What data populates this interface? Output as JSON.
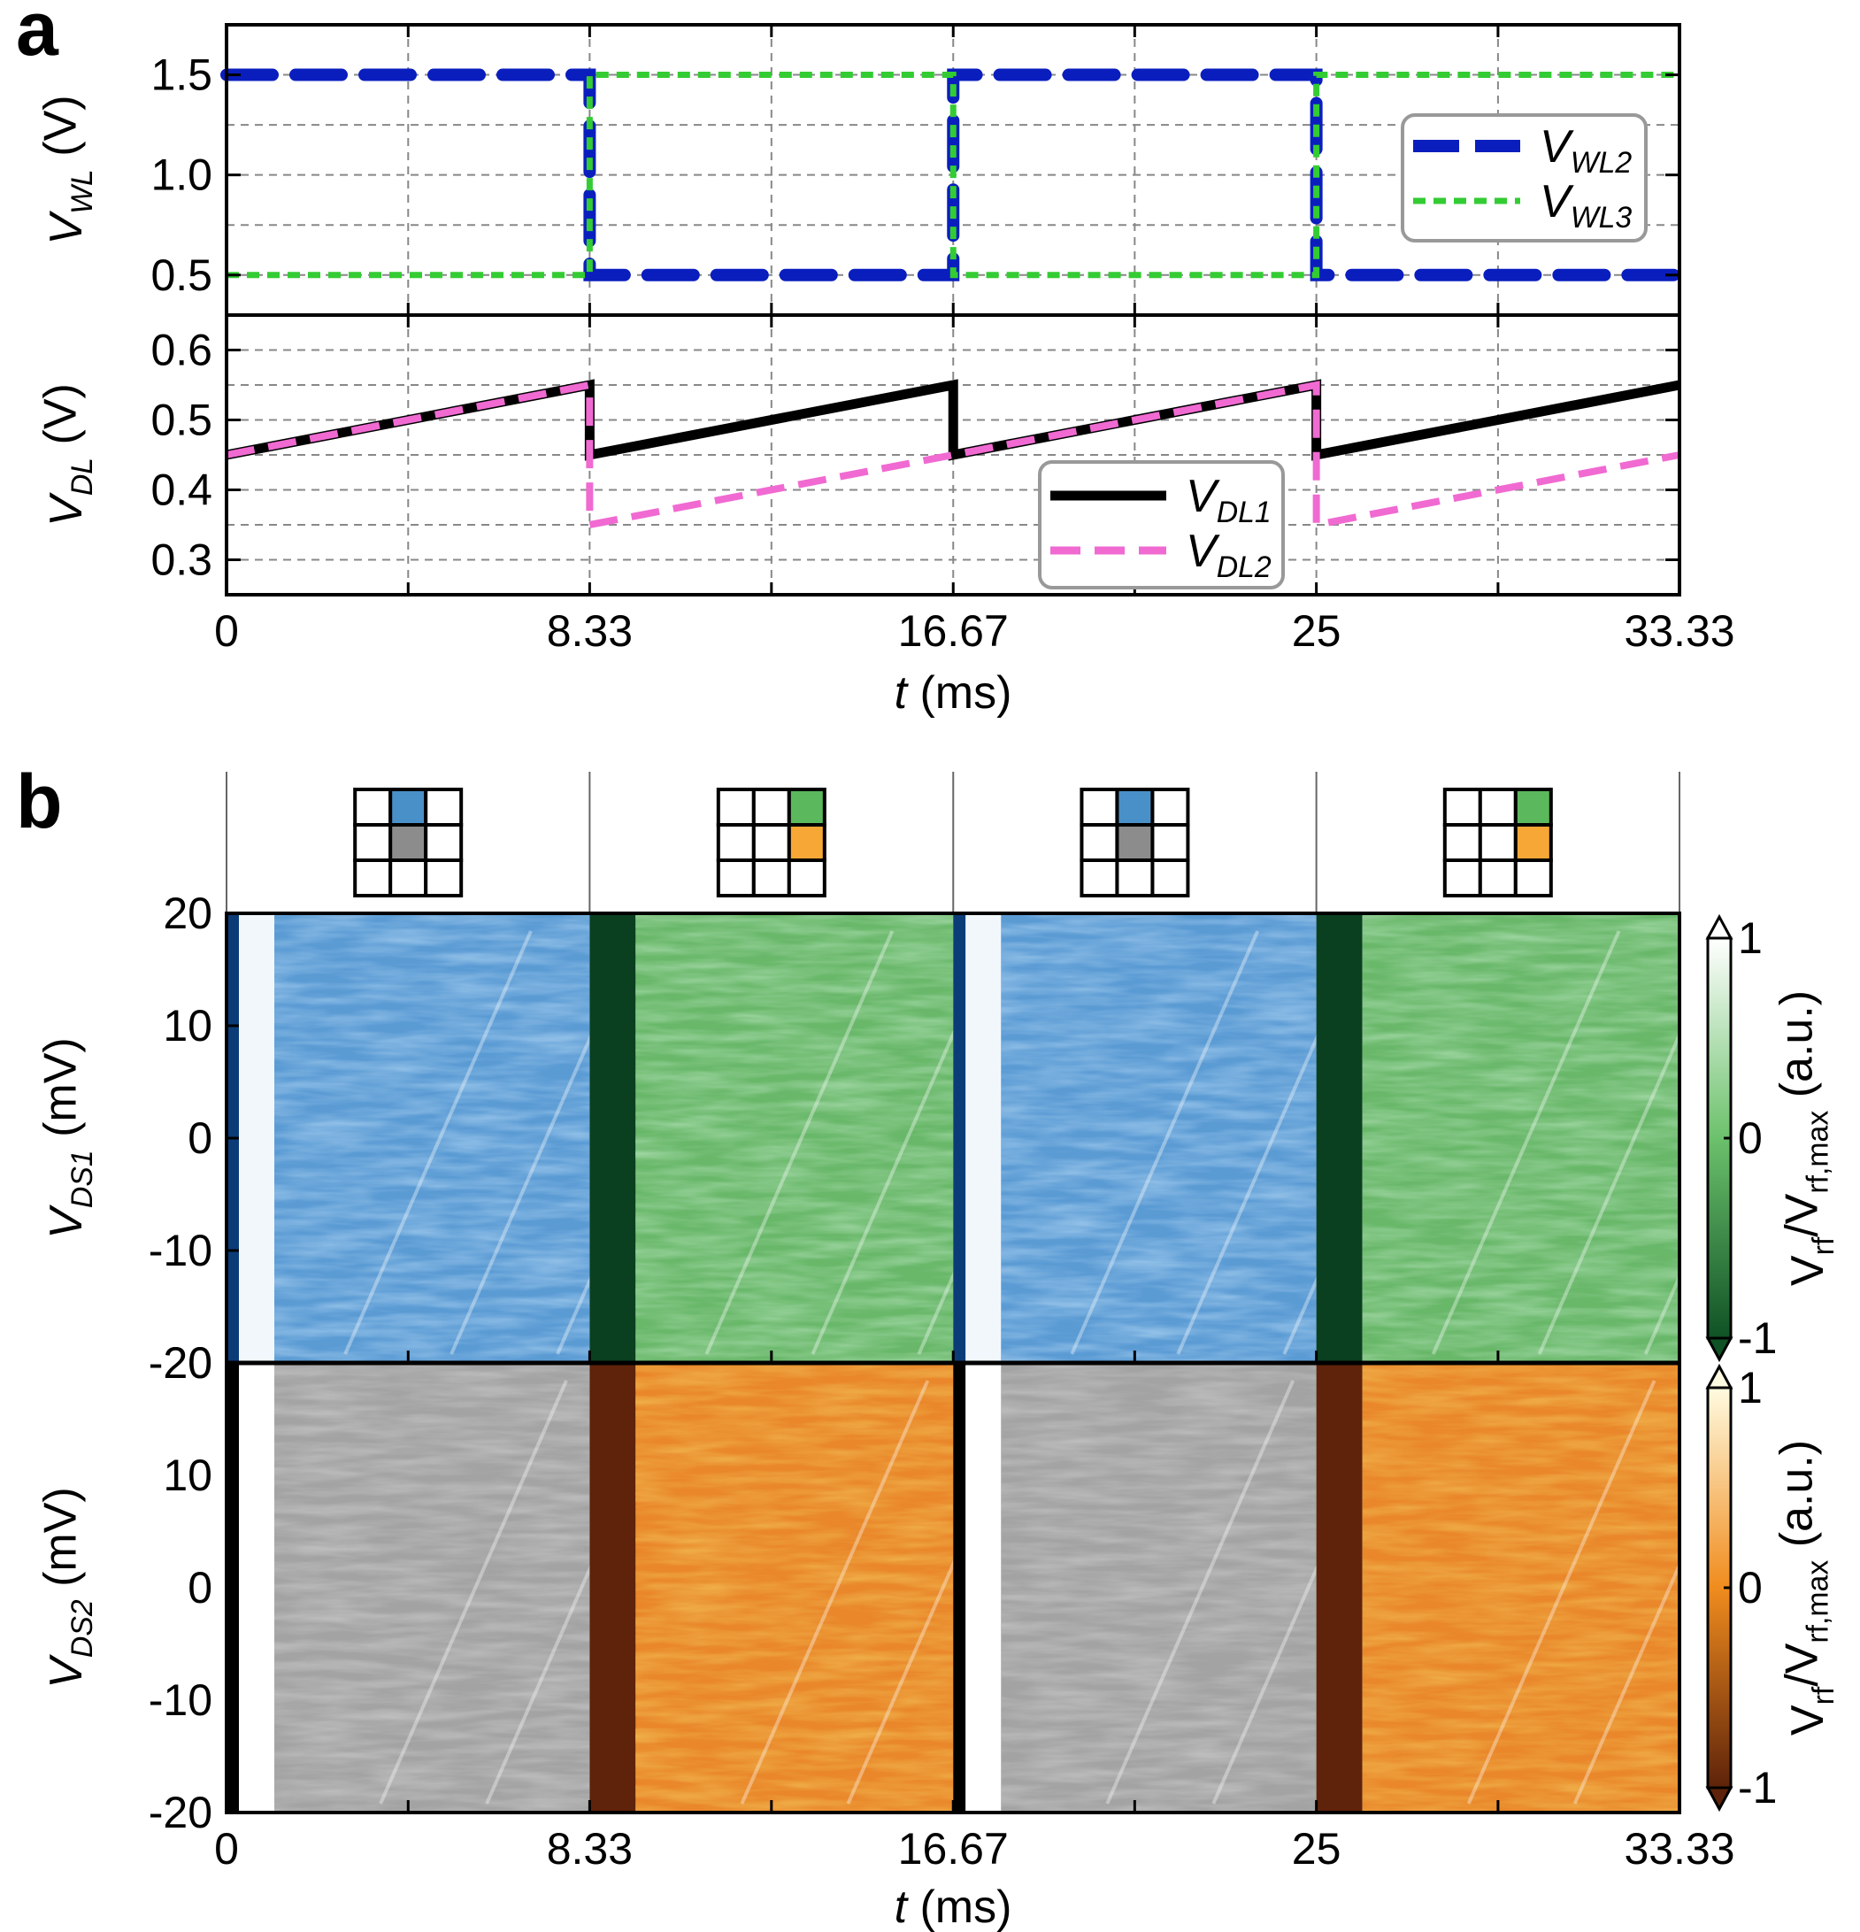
{
  "chart_data": [
    {
      "panel": "a",
      "type": "line",
      "ylabel": {
        "main": "V",
        "sub": "WL",
        "unit": " (V)"
      },
      "xlim": [
        0,
        33.33
      ],
      "ylim": [
        0.3,
        1.75
      ],
      "yticks": [
        0.5,
        1.0,
        1.5
      ],
      "ytick_labels": [
        "0.5",
        "1.0",
        "1.5"
      ],
      "xticks": [
        0,
        8.33,
        16.67,
        25,
        33.33
      ],
      "grid": true,
      "legend_position": "right",
      "series": [
        {
          "name": "V_WL2",
          "label_main": "V",
          "label_sub": "WL2",
          "color": "#0a1ebe",
          "style": "long-dash",
          "x": [
            0,
            8.33,
            8.33,
            16.67,
            16.67,
            25,
            25,
            33.33
          ],
          "y": [
            1.5,
            1.5,
            0.5,
            0.5,
            1.5,
            1.5,
            0.5,
            0.5
          ]
        },
        {
          "name": "V_WL3",
          "label_main": "V",
          "label_sub": "WL3",
          "color": "#33cc33",
          "style": "dotted",
          "x": [
            0,
            8.33,
            8.33,
            16.67,
            16.67,
            25,
            25,
            33.33
          ],
          "y": [
            0.5,
            0.5,
            1.5,
            1.5,
            0.5,
            0.5,
            1.5,
            1.5
          ]
        }
      ]
    },
    {
      "panel": "a",
      "type": "line",
      "ylabel": {
        "main": "V",
        "sub": "DL",
        "unit": " (V)"
      },
      "xlabel": {
        "main": "t",
        "unit": " (ms)"
      },
      "xlim": [
        0,
        33.33
      ],
      "ylim": [
        0.25,
        0.65
      ],
      "yticks": [
        0.3,
        0.4,
        0.5,
        0.6
      ],
      "ytick_labels": [
        "0.3",
        "0.4",
        "0.5",
        "0.6"
      ],
      "xticks": [
        0,
        8.33,
        16.67,
        25,
        33.33
      ],
      "xtick_labels": [
        "0",
        "8.33",
        "16.67",
        "25",
        "33.33"
      ],
      "grid": true,
      "legend_position": "bottom-right",
      "series": [
        {
          "name": "V_DL1",
          "label_main": "V",
          "label_sub": "DL1",
          "color": "#000000",
          "style": "solid",
          "x": [
            0,
            8.33,
            8.33,
            16.67,
            16.67,
            25,
            25,
            33.33
          ],
          "y": [
            0.45,
            0.55,
            0.45,
            0.55,
            0.45,
            0.55,
            0.45,
            0.55
          ]
        },
        {
          "name": "V_DL2",
          "label_main": "V",
          "label_sub": "DL2",
          "color": "#f06ad2",
          "style": "dashed",
          "x": [
            0,
            8.33,
            8.33,
            16.67,
            25,
            25,
            33.33
          ],
          "y": [
            0.45,
            0.55,
            0.35,
            0.45,
            0.55,
            0.35,
            0.45
          ]
        }
      ]
    },
    {
      "panel": "b",
      "type": "heatmap",
      "ylabel": {
        "main": "V",
        "sub": "DS1",
        "unit": " (mV)"
      },
      "yticks": [
        -20,
        -10,
        0,
        10,
        20
      ],
      "ytick_labels": [
        "-20",
        "-10",
        "0",
        "10",
        "20"
      ],
      "ylim": [
        -20,
        20
      ],
      "xlim": [
        0,
        33.33
      ],
      "segments": [
        {
          "t_start": 0,
          "t_end": 8.33,
          "colormap": "Blues",
          "highlight": [
            0,
            1
          ],
          "highlight_color": "#4a90c8"
        },
        {
          "t_start": 8.33,
          "t_end": 16.67,
          "colormap": "Greens",
          "highlight": [
            0,
            2
          ],
          "highlight_color": "#5cb85c"
        },
        {
          "t_start": 16.67,
          "t_end": 25,
          "colormap": "Blues",
          "highlight": [
            0,
            1
          ],
          "highlight_color": "#4a90c8"
        },
        {
          "t_start": 25,
          "t_end": 33.33,
          "colormap": "Greens",
          "highlight": [
            0,
            2
          ],
          "highlight_color": "#5cb85c"
        }
      ],
      "colorbar": {
        "label_main": "V",
        "label_sub1": "rf",
        "label_mid": "/V",
        "label_sub2": "rf,max",
        "unit": " (a.u.)",
        "ticks": [
          "-1",
          "0",
          "1"
        ],
        "low": "#0f5225",
        "mid": "#6cc16c",
        "high": "#ffffff"
      }
    },
    {
      "panel": "b",
      "type": "heatmap",
      "ylabel": {
        "main": "V",
        "sub": "DS2",
        "unit": " (mV)"
      },
      "xlabel": {
        "main": "t",
        "unit": " (ms)"
      },
      "yticks": [
        -20,
        -10,
        0,
        10,
        20
      ],
      "ytick_labels": [
        "-20",
        "-10",
        "0",
        "10",
        "20"
      ],
      "ylim": [
        -20,
        20
      ],
      "xlim": [
        0,
        33.33
      ],
      "xticks": [
        0,
        8.33,
        16.67,
        25,
        33.33
      ],
      "xtick_labels": [
        "0",
        "8.33",
        "16.67",
        "25",
        "33.33"
      ],
      "segments": [
        {
          "t_start": 0,
          "t_end": 8.33,
          "colormap": "Greys",
          "highlight": [
            1,
            1
          ],
          "highlight_color": "#8c8c8c"
        },
        {
          "t_start": 8.33,
          "t_end": 16.67,
          "colormap": "Oranges",
          "highlight": [
            1,
            2
          ],
          "highlight_color": "#f7a735"
        },
        {
          "t_start": 16.67,
          "t_end": 25,
          "colormap": "Greys",
          "highlight": [
            1,
            1
          ],
          "highlight_color": "#8c8c8c"
        },
        {
          "t_start": 25,
          "t_end": 33.33,
          "colormap": "Oranges",
          "highlight": [
            1,
            2
          ],
          "highlight_color": "#f7a735"
        }
      ],
      "colorbar": {
        "label_main": "V",
        "label_sub1": "rf",
        "label_mid": "/V",
        "label_sub2": "rf,max",
        "unit": " (a.u.)",
        "ticks": [
          "-1",
          "0",
          "1"
        ],
        "low": "#5e230a",
        "mid": "#f08c1e",
        "high": "#fffbe0"
      }
    }
  ],
  "panel_labels": [
    "a",
    "b"
  ]
}
